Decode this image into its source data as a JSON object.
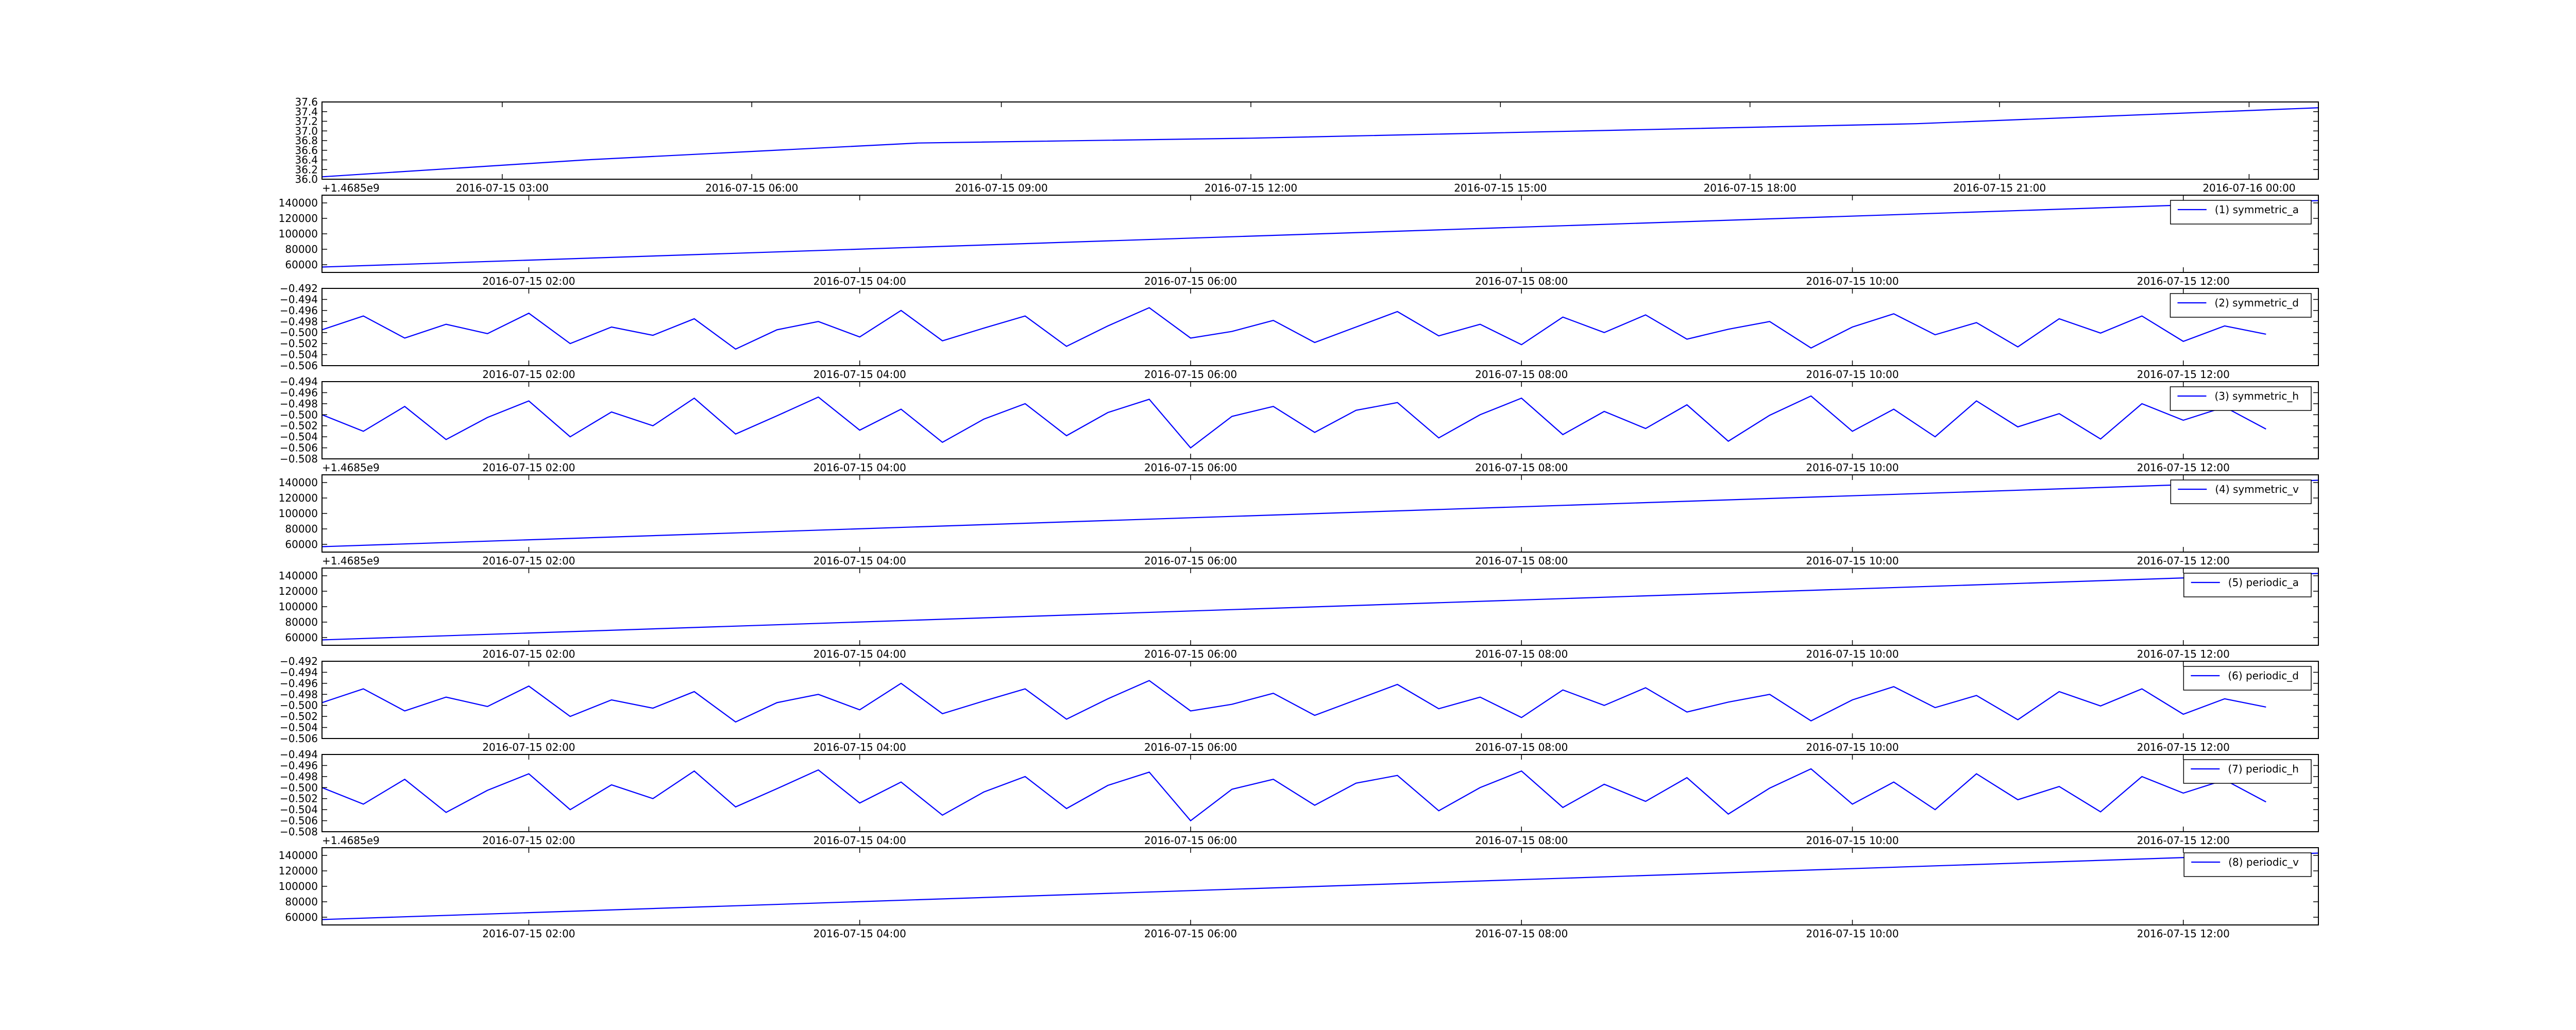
{
  "chart_data": [
    {
      "type": "line",
      "x": [
        "2016-07-15 00:50",
        "2016-07-15 04:00",
        "2016-07-15 08:00",
        "2016-07-15 12:00",
        "2016-07-15 16:00",
        "2016-07-15 20:00",
        "2016-07-16 00:50"
      ],
      "series": [
        {
          "color": "#0000ff",
          "values": [
            36.05,
            36.4,
            36.75,
            36.85,
            37.0,
            37.15,
            37.48
          ]
        }
      ],
      "xlim": [
        "2016-07-15 00:50",
        "2016-07-16 00:50"
      ],
      "xticks": [
        "2016-07-15 03:00",
        "2016-07-15 06:00",
        "2016-07-15 09:00",
        "2016-07-15 12:00",
        "2016-07-15 15:00",
        "2016-07-15 18:00",
        "2016-07-15 21:00",
        "2016-07-16 00:00"
      ],
      "ylim": [
        36,
        37.6
      ],
      "yticks": [
        {
          "value": 36,
          "label": "36.0"
        },
        36.2,
        36.4,
        36.6,
        36.8,
        {
          "value": 37,
          "label": "37.0"
        },
        37.2,
        37.4,
        37.6
      ],
      "offset_text": "+1.4685e9"
    },
    {
      "type": "line",
      "x": [
        "2016-07-15 00:45",
        "2016-07-15 12:49"
      ],
      "series": [
        {
          "name": "(1) symmetric_a",
          "color": "#0000ff",
          "values": [
            57000,
            143000
          ]
        }
      ],
      "xlim": [
        "2016-07-15 00:45",
        "2016-07-15 12:49"
      ],
      "xticks": [
        "2016-07-15 02:00",
        "2016-07-15 04:00",
        "2016-07-15 06:00",
        "2016-07-15 08:00",
        "2016-07-15 10:00",
        "2016-07-15 12:00"
      ],
      "ylim": [
        50000,
        150000
      ],
      "yticks": [
        60000,
        80000,
        100000,
        120000,
        140000
      ],
      "legend": "upper right"
    },
    {
      "type": "line",
      "x": [
        "2016-07-15 00:45",
        "2016-07-15 01:00",
        "2016-07-15 01:15",
        "2016-07-15 01:30",
        "2016-07-15 01:45",
        "2016-07-15 02:00",
        "2016-07-15 02:15",
        "2016-07-15 02:30",
        "2016-07-15 02:45",
        "2016-07-15 03:00",
        "2016-07-15 03:15",
        "2016-07-15 03:30",
        "2016-07-15 03:45",
        "2016-07-15 04:00",
        "2016-07-15 04:15",
        "2016-07-15 04:30",
        "2016-07-15 04:45",
        "2016-07-15 05:00",
        "2016-07-15 05:15",
        "2016-07-15 05:30",
        "2016-07-15 05:45",
        "2016-07-15 06:00",
        "2016-07-15 06:15",
        "2016-07-15 06:30",
        "2016-07-15 06:45",
        "2016-07-15 07:00",
        "2016-07-15 07:15",
        "2016-07-15 07:30",
        "2016-07-15 07:45",
        "2016-07-15 08:00",
        "2016-07-15 08:15",
        "2016-07-15 08:30",
        "2016-07-15 08:45",
        "2016-07-15 09:00",
        "2016-07-15 09:15",
        "2016-07-15 09:30",
        "2016-07-15 09:45",
        "2016-07-15 10:00",
        "2016-07-15 10:15",
        "2016-07-15 10:30",
        "2016-07-15 10:45",
        "2016-07-15 11:00",
        "2016-07-15 11:15",
        "2016-07-15 11:30",
        "2016-07-15 11:45",
        "2016-07-15 12:00",
        "2016-07-15 12:15",
        "2016-07-15 12:30"
      ],
      "series": [
        {
          "name": "(2) symmetric_d",
          "color": "#0000ff",
          "values": [
            -0.4995,
            -0.497,
            -0.501,
            -0.4985,
            -0.5002,
            -0.4965,
            -0.502,
            -0.499,
            -0.5005,
            -0.4975,
            -0.503,
            -0.4995,
            -0.498,
            -0.5008,
            -0.496,
            -0.5015,
            -0.4992,
            -0.497,
            -0.5025,
            -0.4988,
            -0.4955,
            -0.501,
            -0.4998,
            -0.4978,
            -0.5018,
            -0.499,
            -0.4962,
            -0.5006,
            -0.4985,
            -0.5022,
            -0.4972,
            -0.5,
            -0.4968,
            -0.5012,
            -0.4994,
            -0.498,
            -0.5028,
            -0.499,
            -0.4966,
            -0.5004,
            -0.4982,
            -0.5026,
            -0.4975,
            -0.5001,
            -0.497,
            -0.5016,
            -0.4988,
            -0.5003
          ]
        }
      ],
      "xlim": [
        "2016-07-15 00:45",
        "2016-07-15 12:49"
      ],
      "xticks": [
        "2016-07-15 02:00",
        "2016-07-15 04:00",
        "2016-07-15 06:00",
        "2016-07-15 08:00",
        "2016-07-15 10:00",
        "2016-07-15 12:00"
      ],
      "ylim": [
        -0.506,
        -0.492
      ],
      "yticks": [
        {
          "value": -0.506,
          "label": "−0.506"
        },
        {
          "value": -0.504,
          "label": "−0.504"
        },
        {
          "value": -0.502,
          "label": "−0.502"
        },
        {
          "value": -0.5,
          "label": "−0.500"
        },
        {
          "value": -0.498,
          "label": "−0.498"
        },
        {
          "value": -0.496,
          "label": "−0.496"
        },
        {
          "value": -0.494,
          "label": "−0.494"
        },
        {
          "value": -0.492,
          "label": "−0.492"
        }
      ],
      "legend": "upper right"
    },
    {
      "type": "line",
      "x": [
        "2016-07-15 00:45",
        "2016-07-15 01:00",
        "2016-07-15 01:15",
        "2016-07-15 01:30",
        "2016-07-15 01:45",
        "2016-07-15 02:00",
        "2016-07-15 02:15",
        "2016-07-15 02:30",
        "2016-07-15 02:45",
        "2016-07-15 03:00",
        "2016-07-15 03:15",
        "2016-07-15 03:30",
        "2016-07-15 03:45",
        "2016-07-15 04:00",
        "2016-07-15 04:15",
        "2016-07-15 04:30",
        "2016-07-15 04:45",
        "2016-07-15 05:00",
        "2016-07-15 05:15",
        "2016-07-15 05:30",
        "2016-07-15 05:45",
        "2016-07-15 06:00",
        "2016-07-15 06:15",
        "2016-07-15 06:30",
        "2016-07-15 06:45",
        "2016-07-15 07:00",
        "2016-07-15 07:15",
        "2016-07-15 07:30",
        "2016-07-15 07:45",
        "2016-07-15 08:00",
        "2016-07-15 08:15",
        "2016-07-15 08:30",
        "2016-07-15 08:45",
        "2016-07-15 09:00",
        "2016-07-15 09:15",
        "2016-07-15 09:30",
        "2016-07-15 09:45",
        "2016-07-15 10:00",
        "2016-07-15 10:15",
        "2016-07-15 10:30",
        "2016-07-15 10:45",
        "2016-07-15 11:00",
        "2016-07-15 11:15",
        "2016-07-15 11:30",
        "2016-07-15 11:45",
        "2016-07-15 12:00",
        "2016-07-15 12:15",
        "2016-07-15 12:30"
      ],
      "series": [
        {
          "name": "(3) symmetric_h",
          "color": "#0000ff",
          "values": [
            -0.5,
            -0.503,
            -0.4985,
            -0.5045,
            -0.5005,
            -0.4975,
            -0.504,
            -0.4995,
            -0.502,
            -0.497,
            -0.5035,
            -0.5002,
            -0.4968,
            -0.5028,
            -0.499,
            -0.505,
            -0.5008,
            -0.498,
            -0.5038,
            -0.4996,
            -0.4972,
            -0.506,
            -0.5003,
            -0.4985,
            -0.5032,
            -0.4992,
            -0.4978,
            -0.5042,
            -0.5,
            -0.497,
            -0.5036,
            -0.4994,
            -0.5025,
            -0.4982,
            -0.5048,
            -0.5001,
            -0.4966,
            -0.503,
            -0.499,
            -0.504,
            -0.4975,
            -0.5022,
            -0.4998,
            -0.5044,
            -0.498,
            -0.501,
            -0.4986,
            -0.5026
          ]
        }
      ],
      "xlim": [
        "2016-07-15 00:45",
        "2016-07-15 12:49"
      ],
      "xticks": [
        "2016-07-15 02:00",
        "2016-07-15 04:00",
        "2016-07-15 06:00",
        "2016-07-15 08:00",
        "2016-07-15 10:00",
        "2016-07-15 12:00"
      ],
      "ylim": [
        -0.508,
        -0.494
      ],
      "yticks": [
        {
          "value": -0.508,
          "label": "−0.508"
        },
        {
          "value": -0.506,
          "label": "−0.506"
        },
        {
          "value": -0.504,
          "label": "−0.504"
        },
        {
          "value": -0.502,
          "label": "−0.502"
        },
        {
          "value": -0.5,
          "label": "−0.500"
        },
        {
          "value": -0.498,
          "label": "−0.498"
        },
        {
          "value": -0.496,
          "label": "−0.496"
        },
        {
          "value": -0.494,
          "label": "−0.494"
        }
      ],
      "legend": "upper right",
      "offset_text": "+1.4685e9"
    },
    {
      "type": "line",
      "x": [
        "2016-07-15 00:45",
        "2016-07-15 12:49"
      ],
      "series": [
        {
          "name": "(4) symmetric_v",
          "color": "#0000ff",
          "values": [
            57000,
            143000
          ]
        }
      ],
      "xlim": [
        "2016-07-15 00:45",
        "2016-07-15 12:49"
      ],
      "xticks": [
        "2016-07-15 02:00",
        "2016-07-15 04:00",
        "2016-07-15 06:00",
        "2016-07-15 08:00",
        "2016-07-15 10:00",
        "2016-07-15 12:00"
      ],
      "ylim": [
        50000,
        150000
      ],
      "yticks": [
        60000,
        80000,
        100000,
        120000,
        140000
      ],
      "legend": "upper right",
      "offset_text": "+1.4685e9"
    },
    {
      "type": "line",
      "x": [
        "2016-07-15 00:45",
        "2016-07-15 12:49"
      ],
      "series": [
        {
          "name": "(5) periodic_a",
          "color": "#0000ff",
          "values": [
            57000,
            143000
          ]
        }
      ],
      "xlim": [
        "2016-07-15 00:45",
        "2016-07-15 12:49"
      ],
      "xticks": [
        "2016-07-15 02:00",
        "2016-07-15 04:00",
        "2016-07-15 06:00",
        "2016-07-15 08:00",
        "2016-07-15 10:00",
        "2016-07-15 12:00"
      ],
      "ylim": [
        50000,
        150000
      ],
      "yticks": [
        60000,
        80000,
        100000,
        120000,
        140000
      ],
      "legend": "upper right"
    },
    {
      "type": "line",
      "x": [
        "2016-07-15 00:45",
        "2016-07-15 01:00",
        "2016-07-15 01:15",
        "2016-07-15 01:30",
        "2016-07-15 01:45",
        "2016-07-15 02:00",
        "2016-07-15 02:15",
        "2016-07-15 02:30",
        "2016-07-15 02:45",
        "2016-07-15 03:00",
        "2016-07-15 03:15",
        "2016-07-15 03:30",
        "2016-07-15 03:45",
        "2016-07-15 04:00",
        "2016-07-15 04:15",
        "2016-07-15 04:30",
        "2016-07-15 04:45",
        "2016-07-15 05:00",
        "2016-07-15 05:15",
        "2016-07-15 05:30",
        "2016-07-15 05:45",
        "2016-07-15 06:00",
        "2016-07-15 06:15",
        "2016-07-15 06:30",
        "2016-07-15 06:45",
        "2016-07-15 07:00",
        "2016-07-15 07:15",
        "2016-07-15 07:30",
        "2016-07-15 07:45",
        "2016-07-15 08:00",
        "2016-07-15 08:15",
        "2016-07-15 08:30",
        "2016-07-15 08:45",
        "2016-07-15 09:00",
        "2016-07-15 09:15",
        "2016-07-15 09:30",
        "2016-07-15 09:45",
        "2016-07-15 10:00",
        "2016-07-15 10:15",
        "2016-07-15 10:30",
        "2016-07-15 10:45",
        "2016-07-15 11:00",
        "2016-07-15 11:15",
        "2016-07-15 11:30",
        "2016-07-15 11:45",
        "2016-07-15 12:00",
        "2016-07-15 12:15",
        "2016-07-15 12:30"
      ],
      "series": [
        {
          "name": "(6) periodic_d",
          "color": "#0000ff",
          "values": [
            -0.4995,
            -0.497,
            -0.501,
            -0.4985,
            -0.5002,
            -0.4965,
            -0.502,
            -0.499,
            -0.5005,
            -0.4975,
            -0.503,
            -0.4995,
            -0.498,
            -0.5008,
            -0.496,
            -0.5015,
            -0.4992,
            -0.497,
            -0.5025,
            -0.4988,
            -0.4955,
            -0.501,
            -0.4998,
            -0.4978,
            -0.5018,
            -0.499,
            -0.4962,
            -0.5006,
            -0.4985,
            -0.5022,
            -0.4972,
            -0.5,
            -0.4968,
            -0.5012,
            -0.4994,
            -0.498,
            -0.5028,
            -0.499,
            -0.4966,
            -0.5004,
            -0.4982,
            -0.5026,
            -0.4975,
            -0.5001,
            -0.497,
            -0.5016,
            -0.4988,
            -0.5003
          ]
        }
      ],
      "xlim": [
        "2016-07-15 00:45",
        "2016-07-15 12:49"
      ],
      "xticks": [
        "2016-07-15 02:00",
        "2016-07-15 04:00",
        "2016-07-15 06:00",
        "2016-07-15 08:00",
        "2016-07-15 10:00",
        "2016-07-15 12:00"
      ],
      "ylim": [
        -0.506,
        -0.492
      ],
      "yticks": [
        {
          "value": -0.506,
          "label": "−0.506"
        },
        {
          "value": -0.504,
          "label": "−0.504"
        },
        {
          "value": -0.502,
          "label": "−0.502"
        },
        {
          "value": -0.5,
          "label": "−0.500"
        },
        {
          "value": -0.498,
          "label": "−0.498"
        },
        {
          "value": -0.496,
          "label": "−0.496"
        },
        {
          "value": -0.494,
          "label": "−0.494"
        },
        {
          "value": -0.492,
          "label": "−0.492"
        }
      ],
      "legend": "upper right"
    },
    {
      "type": "line",
      "x": [
        "2016-07-15 00:45",
        "2016-07-15 01:00",
        "2016-07-15 01:15",
        "2016-07-15 01:30",
        "2016-07-15 01:45",
        "2016-07-15 02:00",
        "2016-07-15 02:15",
        "2016-07-15 02:30",
        "2016-07-15 02:45",
        "2016-07-15 03:00",
        "2016-07-15 03:15",
        "2016-07-15 03:30",
        "2016-07-15 03:45",
        "2016-07-15 04:00",
        "2016-07-15 04:15",
        "2016-07-15 04:30",
        "2016-07-15 04:45",
        "2016-07-15 05:00",
        "2016-07-15 05:15",
        "2016-07-15 05:30",
        "2016-07-15 05:45",
        "2016-07-15 06:00",
        "2016-07-15 06:15",
        "2016-07-15 06:30",
        "2016-07-15 06:45",
        "2016-07-15 07:00",
        "2016-07-15 07:15",
        "2016-07-15 07:30",
        "2016-07-15 07:45",
        "2016-07-15 08:00",
        "2016-07-15 08:15",
        "2016-07-15 08:30",
        "2016-07-15 08:45",
        "2016-07-15 09:00",
        "2016-07-15 09:15",
        "2016-07-15 09:30",
        "2016-07-15 09:45",
        "2016-07-15 10:00",
        "2016-07-15 10:15",
        "2016-07-15 10:30",
        "2016-07-15 10:45",
        "2016-07-15 11:00",
        "2016-07-15 11:15",
        "2016-07-15 11:30",
        "2016-07-15 11:45",
        "2016-07-15 12:00",
        "2016-07-15 12:15",
        "2016-07-15 12:30"
      ],
      "series": [
        {
          "name": "(7) periodic_h",
          "color": "#0000ff",
          "values": [
            -0.5,
            -0.503,
            -0.4985,
            -0.5045,
            -0.5005,
            -0.4975,
            -0.504,
            -0.4995,
            -0.502,
            -0.497,
            -0.5035,
            -0.5002,
            -0.4968,
            -0.5028,
            -0.499,
            -0.505,
            -0.5008,
            -0.498,
            -0.5038,
            -0.4996,
            -0.4972,
            -0.506,
            -0.5003,
            -0.4985,
            -0.5032,
            -0.4992,
            -0.4978,
            -0.5042,
            -0.5,
            -0.497,
            -0.5036,
            -0.4994,
            -0.5025,
            -0.4982,
            -0.5048,
            -0.5001,
            -0.4966,
            -0.503,
            -0.499,
            -0.504,
            -0.4975,
            -0.5022,
            -0.4998,
            -0.5044,
            -0.498,
            -0.501,
            -0.4986,
            -0.5026
          ]
        }
      ],
      "xlim": [
        "2016-07-15 00:45",
        "2016-07-15 12:49"
      ],
      "xticks": [
        "2016-07-15 02:00",
        "2016-07-15 04:00",
        "2016-07-15 06:00",
        "2016-07-15 08:00",
        "2016-07-15 10:00",
        "2016-07-15 12:00"
      ],
      "ylim": [
        -0.508,
        -0.494
      ],
      "yticks": [
        {
          "value": -0.508,
          "label": "−0.508"
        },
        {
          "value": -0.506,
          "label": "−0.506"
        },
        {
          "value": -0.504,
          "label": "−0.504"
        },
        {
          "value": -0.502,
          "label": "−0.502"
        },
        {
          "value": -0.5,
          "label": "−0.500"
        },
        {
          "value": -0.498,
          "label": "−0.498"
        },
        {
          "value": -0.496,
          "label": "−0.496"
        },
        {
          "value": -0.494,
          "label": "−0.494"
        }
      ],
      "legend": "upper right",
      "offset_text": "+1.4685e9"
    },
    {
      "type": "line",
      "x": [
        "2016-07-15 00:45",
        "2016-07-15 12:49"
      ],
      "series": [
        {
          "name": "(8) periodic_v",
          "color": "#0000ff",
          "values": [
            57000,
            143000
          ]
        }
      ],
      "xlim": [
        "2016-07-15 00:45",
        "2016-07-15 12:49"
      ],
      "xticks": [
        "2016-07-15 02:00",
        "2016-07-15 04:00",
        "2016-07-15 06:00",
        "2016-07-15 08:00",
        "2016-07-15 10:00",
        "2016-07-15 12:00"
      ],
      "ylim": [
        50000,
        150000
      ],
      "yticks": [
        60000,
        80000,
        100000,
        120000,
        140000
      ],
      "legend": "upper right"
    }
  ]
}
